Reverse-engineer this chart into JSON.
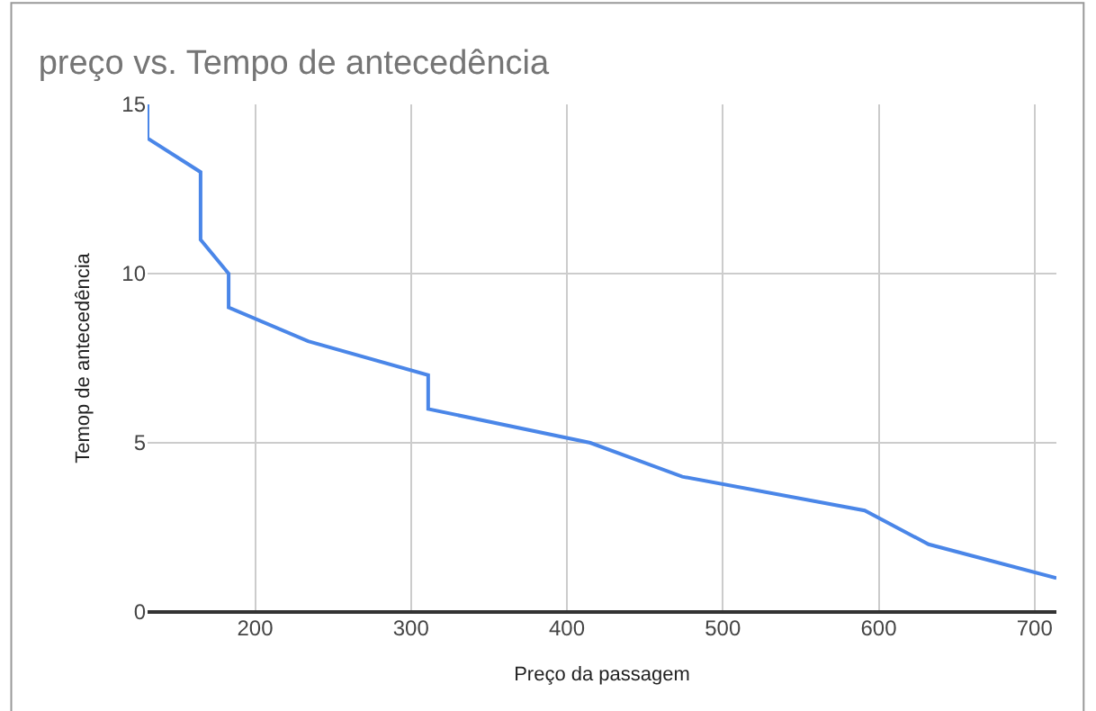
{
  "chart_data": {
    "type": "line",
    "title": "preço vs. Tempo de antecedência",
    "xlabel": "Preço da passagem",
    "ylabel": "Temop de antecedência",
    "x": [
      131,
      131,
      165,
      165,
      183,
      183,
      234,
      311,
      311,
      415,
      474,
      591,
      632,
      714
    ],
    "series": [
      {
        "color": "#4a86e8",
        "values": [
          15,
          14,
          13,
          11,
          10,
          9,
          8,
          7,
          6,
          5,
          4,
          3,
          2,
          1
        ]
      }
    ],
    "xlim": [
      131,
      714
    ],
    "xticks": [
      200,
      300,
      400,
      500,
      600,
      700
    ],
    "ylim": [
      0,
      15
    ],
    "yticks": [
      0,
      5,
      10,
      15
    ],
    "grid": true,
    "marker": "none",
    "line_style": "solid"
  }
}
